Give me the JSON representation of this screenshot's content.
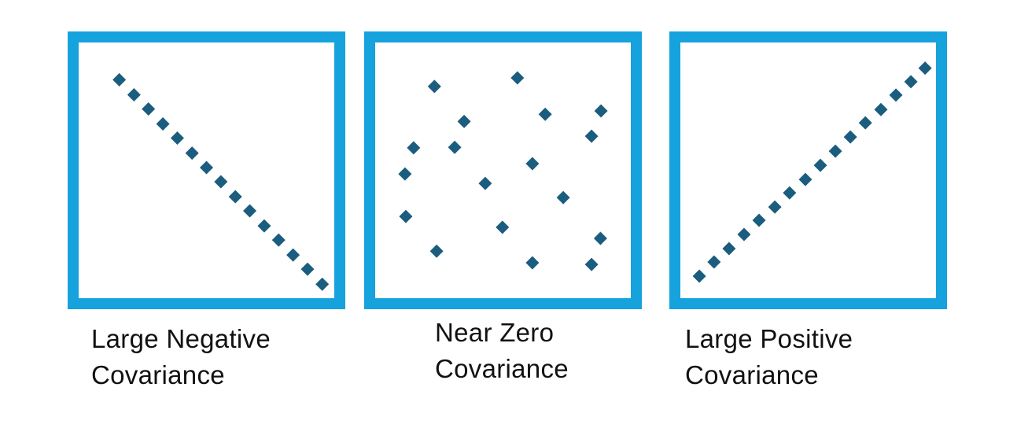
{
  "colors": {
    "frame": "#16a2dd",
    "marker": "#1b5d7e",
    "text": "#111111"
  },
  "marker_shape": "diamond",
  "panels": [
    {
      "id": "negative",
      "caption_line1": "Large Negative",
      "caption_line2": "Covariance",
      "points": [
        [
          0.186,
          0.174
        ],
        [
          0.239,
          0.228
        ],
        [
          0.291,
          0.279
        ],
        [
          0.343,
          0.333
        ],
        [
          0.395,
          0.384
        ],
        [
          0.448,
          0.438
        ],
        [
          0.5,
          0.49
        ],
        [
          0.552,
          0.541
        ],
        [
          0.604,
          0.595
        ],
        [
          0.656,
          0.646
        ],
        [
          0.708,
          0.7
        ],
        [
          0.76,
          0.751
        ],
        [
          0.812,
          0.805
        ],
        [
          0.864,
          0.856
        ],
        [
          0.917,
          0.91
        ]
      ]
    },
    {
      "id": "near-zero",
      "caption_line1": "Near Zero",
      "caption_line2": "Covariance",
      "points": [
        [
          0.253,
          0.198
        ],
        [
          0.552,
          0.167
        ],
        [
          0.36,
          0.324
        ],
        [
          0.652,
          0.298
        ],
        [
          0.853,
          0.286
        ],
        [
          0.178,
          0.419
        ],
        [
          0.326,
          0.417
        ],
        [
          0.819,
          0.377
        ],
        [
          0.147,
          0.513
        ],
        [
          0.606,
          0.476
        ],
        [
          0.436,
          0.547
        ],
        [
          0.717,
          0.598
        ],
        [
          0.15,
          0.666
        ],
        [
          0.498,
          0.705
        ],
        [
          0.851,
          0.745
        ],
        [
          0.261,
          0.791
        ],
        [
          0.606,
          0.833
        ],
        [
          0.819,
          0.839
        ]
      ]
    },
    {
      "id": "positive",
      "caption_line1": "Large Positive",
      "caption_line2": "Covariance",
      "points": [
        [
          0.108,
          0.881
        ],
        [
          0.161,
          0.83
        ],
        [
          0.215,
          0.782
        ],
        [
          0.269,
          0.731
        ],
        [
          0.323,
          0.68
        ],
        [
          0.38,
          0.632
        ],
        [
          0.433,
          0.581
        ],
        [
          0.49,
          0.533
        ],
        [
          0.544,
          0.482
        ],
        [
          0.598,
          0.431
        ],
        [
          0.652,
          0.38
        ],
        [
          0.706,
          0.329
        ],
        [
          0.762,
          0.281
        ],
        [
          0.816,
          0.229
        ],
        [
          0.87,
          0.181
        ],
        [
          0.921,
          0.132
        ]
      ]
    }
  ]
}
